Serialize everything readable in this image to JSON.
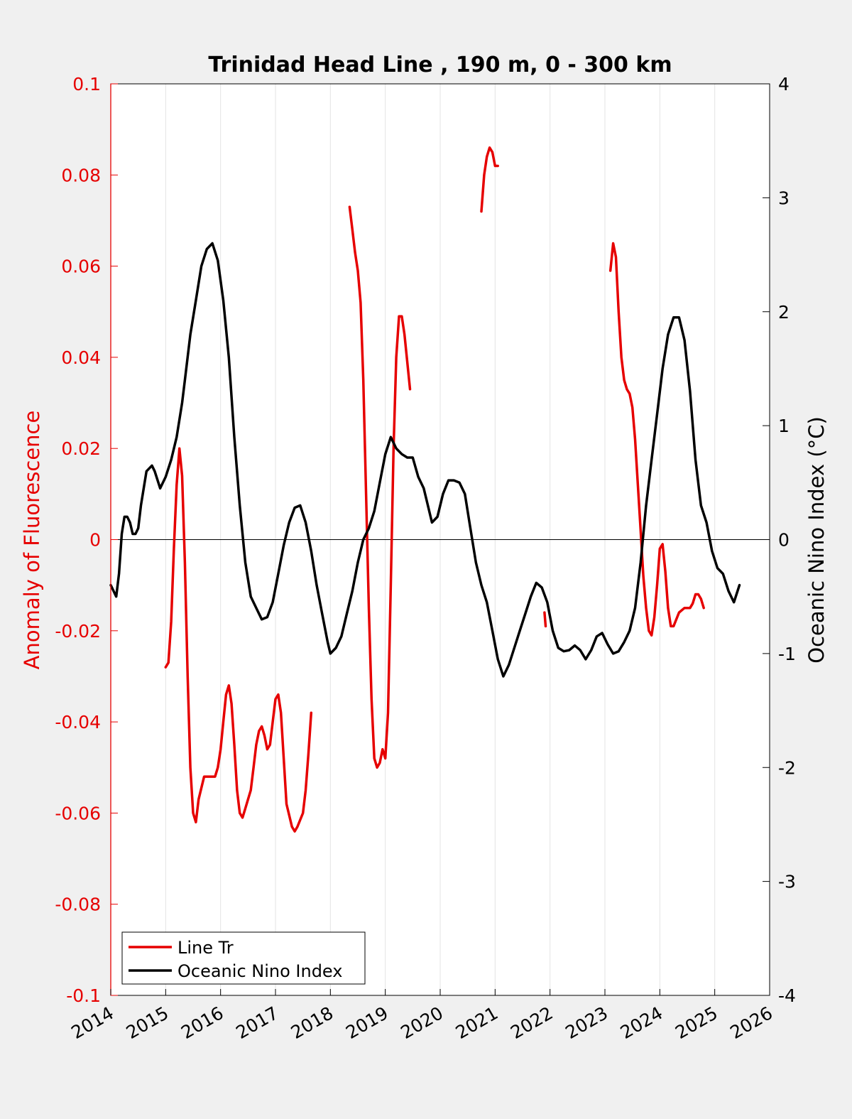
{
  "chart_data": {
    "type": "line",
    "title": "Trinidad Head Line , 190 m, 0 - 300 km",
    "xlabel": "",
    "ylabel_left": "Anomaly of Fluorescence",
    "ylabel_right": "Oceanic Nino Index (°C)",
    "xlim": [
      2014,
      2026
    ],
    "ylim_left": [
      -0.1,
      0.1
    ],
    "ylim_right": [
      -4,
      4
    ],
    "x_ticks": [
      "2014",
      "2015",
      "2016",
      "2017",
      "2018",
      "2019",
      "2020",
      "2021",
      "2022",
      "2023",
      "2024",
      "2025",
      "2026"
    ],
    "y_ticks_left": [
      "0.1",
      "0.08",
      "0.06",
      "0.04",
      "0.02",
      "0",
      "-0.02",
      "-0.04",
      "-0.06",
      "-0.08",
      "-0.1"
    ],
    "y_ticks_right": [
      "4",
      "3",
      "2",
      "1",
      "0",
      "-1",
      "-2",
      "-3",
      "-4"
    ],
    "grid": "vertical",
    "zero_line": true,
    "legend_position": "bottom-left",
    "colors": {
      "fluorescence": "#e60000",
      "oni": "#000000",
      "left_axis": "#e60000",
      "right_axis": "#000000"
    },
    "series": [
      {
        "name": "Line Tr",
        "axis": "left",
        "color": "#e60000",
        "segments": [
          [
            [
              2015.0,
              -0.028
            ],
            [
              2015.05,
              -0.027
            ],
            [
              2015.1,
              -0.018
            ],
            [
              2015.15,
              -0.002
            ],
            [
              2015.2,
              0.012
            ],
            [
              2015.25,
              0.02
            ],
            [
              2015.3,
              0.014
            ],
            [
              2015.35,
              -0.005
            ],
            [
              2015.4,
              -0.03
            ],
            [
              2015.45,
              -0.05
            ],
            [
              2015.5,
              -0.06
            ],
            [
              2015.55,
              -0.062
            ],
            [
              2015.6,
              -0.057
            ],
            [
              2015.7,
              -0.052
            ],
            [
              2015.8,
              -0.052
            ],
            [
              2015.9,
              -0.052
            ],
            [
              2015.95,
              -0.05
            ],
            [
              2016.0,
              -0.046
            ],
            [
              2016.05,
              -0.04
            ],
            [
              2016.1,
              -0.034
            ],
            [
              2016.15,
              -0.032
            ],
            [
              2016.2,
              -0.036
            ],
            [
              2016.25,
              -0.045
            ],
            [
              2016.3,
              -0.055
            ],
            [
              2016.35,
              -0.06
            ],
            [
              2016.4,
              -0.061
            ],
            [
              2016.45,
              -0.059
            ],
            [
              2016.5,
              -0.057
            ],
            [
              2016.55,
              -0.055
            ],
            [
              2016.6,
              -0.05
            ],
            [
              2016.65,
              -0.045
            ],
            [
              2016.7,
              -0.042
            ],
            [
              2016.75,
              -0.041
            ],
            [
              2016.8,
              -0.043
            ],
            [
              2016.85,
              -0.046
            ],
            [
              2016.9,
              -0.045
            ],
            [
              2016.95,
              -0.04
            ],
            [
              2017.0,
              -0.035
            ],
            [
              2017.05,
              -0.034
            ],
            [
              2017.1,
              -0.038
            ],
            [
              2017.15,
              -0.048
            ],
            [
              2017.2,
              -0.058
            ],
            [
              2017.3,
              -0.063
            ],
            [
              2017.35,
              -0.064
            ],
            [
              2017.4,
              -0.063
            ],
            [
              2017.5,
              -0.06
            ],
            [
              2017.55,
              -0.055
            ],
            [
              2017.6,
              -0.047
            ],
            [
              2017.65,
              -0.038
            ]
          ],
          [
            [
              2018.35,
              0.073
            ],
            [
              2018.4,
              0.068
            ],
            [
              2018.45,
              0.063
            ],
            [
              2018.5,
              0.059
            ],
            [
              2018.55,
              0.052
            ],
            [
              2018.6,
              0.035
            ],
            [
              2018.65,
              0.01
            ],
            [
              2018.7,
              -0.015
            ],
            [
              2018.75,
              -0.035
            ],
            [
              2018.8,
              -0.048
            ],
            [
              2018.85,
              -0.05
            ],
            [
              2018.9,
              -0.049
            ],
            [
              2018.95,
              -0.046
            ],
            [
              2019.0,
              -0.048
            ],
            [
              2019.05,
              -0.038
            ],
            [
              2019.1,
              -0.01
            ],
            [
              2019.15,
              0.02
            ],
            [
              2019.2,
              0.04
            ],
            [
              2019.25,
              0.049
            ],
            [
              2019.3,
              0.049
            ],
            [
              2019.35,
              0.045
            ],
            [
              2019.45,
              0.033
            ]
          ],
          [
            [
              2020.75,
              0.072
            ],
            [
              2020.8,
              0.08
            ],
            [
              2020.85,
              0.084
            ],
            [
              2020.9,
              0.086
            ],
            [
              2020.95,
              0.085
            ],
            [
              2021.0,
              0.082
            ],
            [
              2021.05,
              0.082
            ]
          ],
          [
            [
              2021.9,
              -0.016
            ],
            [
              2021.92,
              -0.019
            ]
          ],
          [
            [
              2023.1,
              0.059
            ],
            [
              2023.15,
              0.065
            ],
            [
              2023.2,
              0.062
            ],
            [
              2023.25,
              0.05
            ],
            [
              2023.3,
              0.04
            ],
            [
              2023.35,
              0.035
            ],
            [
              2023.4,
              0.033
            ],
            [
              2023.45,
              0.032
            ],
            [
              2023.5,
              0.029
            ],
            [
              2023.55,
              0.022
            ],
            [
              2023.6,
              0.012
            ],
            [
              2023.65,
              0.002
            ],
            [
              2023.7,
              -0.008
            ],
            [
              2023.75,
              -0.015
            ],
            [
              2023.8,
              -0.02
            ],
            [
              2023.85,
              -0.021
            ],
            [
              2023.9,
              -0.017
            ],
            [
              2023.95,
              -0.01
            ],
            [
              2024.0,
              -0.002
            ],
            [
              2024.05,
              -0.001
            ],
            [
              2024.1,
              -0.007
            ],
            [
              2024.15,
              -0.015
            ],
            [
              2024.2,
              -0.019
            ],
            [
              2024.25,
              -0.019
            ],
            [
              2024.35,
              -0.016
            ],
            [
              2024.45,
              -0.015
            ],
            [
              2024.55,
              -0.015
            ],
            [
              2024.6,
              -0.014
            ],
            [
              2024.65,
              -0.012
            ],
            [
              2024.7,
              -0.012
            ],
            [
              2024.75,
              -0.013
            ],
            [
              2024.8,
              -0.015
            ]
          ]
        ]
      },
      {
        "name": "Oceanic Nino Index",
        "axis": "right",
        "color": "#000000",
        "segments": [
          [
            [
              2014.0,
              -0.4
            ],
            [
              2014.05,
              -0.45
            ],
            [
              2014.1,
              -0.5
            ],
            [
              2014.15,
              -0.3
            ],
            [
              2014.2,
              0.05
            ],
            [
              2014.25,
              0.2
            ],
            [
              2014.3,
              0.2
            ],
            [
              2014.35,
              0.15
            ],
            [
              2014.4,
              0.05
            ],
            [
              2014.45,
              0.05
            ],
            [
              2014.5,
              0.1
            ],
            [
              2014.55,
              0.3
            ],
            [
              2014.6,
              0.45
            ],
            [
              2014.65,
              0.6
            ],
            [
              2014.75,
              0.65
            ],
            [
              2014.8,
              0.6
            ],
            [
              2014.9,
              0.45
            ],
            [
              2015.0,
              0.55
            ],
            [
              2015.1,
              0.7
            ],
            [
              2015.2,
              0.9
            ],
            [
              2015.3,
              1.2
            ],
            [
              2015.35,
              1.4
            ],
            [
              2015.45,
              1.8
            ],
            [
              2015.55,
              2.1
            ],
            [
              2015.65,
              2.4
            ],
            [
              2015.75,
              2.55
            ],
            [
              2015.85,
              2.6
            ],
            [
              2015.95,
              2.45
            ],
            [
              2016.05,
              2.1
            ],
            [
              2016.15,
              1.6
            ],
            [
              2016.25,
              0.9
            ],
            [
              2016.35,
              0.3
            ],
            [
              2016.45,
              -0.2
            ],
            [
              2016.55,
              -0.5
            ],
            [
              2016.65,
              -0.6
            ],
            [
              2016.75,
              -0.7
            ],
            [
              2016.85,
              -0.68
            ],
            [
              2016.95,
              -0.55
            ],
            [
              2017.05,
              -0.3
            ],
            [
              2017.15,
              -0.05
            ],
            [
              2017.25,
              0.15
            ],
            [
              2017.35,
              0.28
            ],
            [
              2017.45,
              0.3
            ],
            [
              2017.55,
              0.15
            ],
            [
              2017.65,
              -0.1
            ],
            [
              2017.75,
              -0.4
            ],
            [
              2017.85,
              -0.65
            ],
            [
              2017.95,
              -0.9
            ],
            [
              2018.0,
              -1.0
            ],
            [
              2018.1,
              -0.95
            ],
            [
              2018.2,
              -0.85
            ],
            [
              2018.3,
              -0.65
            ],
            [
              2018.4,
              -0.45
            ],
            [
              2018.5,
              -0.2
            ],
            [
              2018.6,
              0.0
            ],
            [
              2018.7,
              0.1
            ],
            [
              2018.8,
              0.25
            ],
            [
              2018.9,
              0.5
            ],
            [
              2019.0,
              0.75
            ],
            [
              2019.1,
              0.9
            ],
            [
              2019.2,
              0.8
            ],
            [
              2019.3,
              0.75
            ],
            [
              2019.4,
              0.72
            ],
            [
              2019.5,
              0.72
            ],
            [
              2019.6,
              0.55
            ],
            [
              2019.7,
              0.45
            ],
            [
              2019.75,
              0.35
            ],
            [
              2019.85,
              0.15
            ],
            [
              2019.95,
              0.2
            ],
            [
              2020.05,
              0.4
            ],
            [
              2020.15,
              0.52
            ],
            [
              2020.25,
              0.52
            ],
            [
              2020.35,
              0.5
            ],
            [
              2020.45,
              0.4
            ],
            [
              2020.55,
              0.1
            ],
            [
              2020.65,
              -0.2
            ],
            [
              2020.75,
              -0.4
            ],
            [
              2020.85,
              -0.55
            ],
            [
              2020.95,
              -0.8
            ],
            [
              2021.05,
              -1.05
            ],
            [
              2021.15,
              -1.2
            ],
            [
              2021.25,
              -1.1
            ],
            [
              2021.35,
              -0.95
            ],
            [
              2021.45,
              -0.8
            ],
            [
              2021.55,
              -0.65
            ],
            [
              2021.65,
              -0.5
            ],
            [
              2021.75,
              -0.38
            ],
            [
              2021.85,
              -0.42
            ],
            [
              2021.95,
              -0.55
            ],
            [
              2022.05,
              -0.8
            ],
            [
              2022.15,
              -0.95
            ],
            [
              2022.25,
              -0.98
            ],
            [
              2022.35,
              -0.97
            ],
            [
              2022.45,
              -0.93
            ],
            [
              2022.55,
              -0.97
            ],
            [
              2022.65,
              -1.05
            ],
            [
              2022.75,
              -0.97
            ],
            [
              2022.85,
              -0.85
            ],
            [
              2022.95,
              -0.82
            ],
            [
              2023.05,
              -0.92
            ],
            [
              2023.15,
              -1.0
            ],
            [
              2023.25,
              -0.98
            ],
            [
              2023.35,
              -0.9
            ],
            [
              2023.45,
              -0.8
            ],
            [
              2023.55,
              -0.6
            ],
            [
              2023.65,
              -0.2
            ],
            [
              2023.75,
              0.3
            ],
            [
              2023.85,
              0.7
            ],
            [
              2023.95,
              1.1
            ],
            [
              2024.05,
              1.5
            ],
            [
              2024.15,
              1.8
            ],
            [
              2024.25,
              1.95
            ],
            [
              2024.35,
              1.95
            ],
            [
              2024.45,
              1.75
            ],
            [
              2024.55,
              1.3
            ],
            [
              2024.65,
              0.7
            ],
            [
              2024.75,
              0.3
            ],
            [
              2024.85,
              0.15
            ],
            [
              2024.95,
              -0.1
            ],
            [
              2025.05,
              -0.25
            ],
            [
              2025.15,
              -0.3
            ],
            [
              2025.25,
              -0.45
            ],
            [
              2025.35,
              -0.55
            ],
            [
              2025.45,
              -0.4
            ]
          ]
        ]
      }
    ]
  }
}
